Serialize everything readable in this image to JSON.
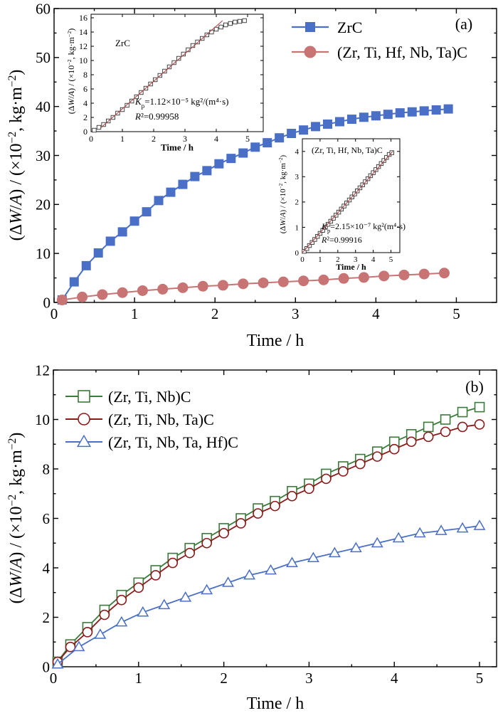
{
  "chart_data": [
    {
      "type": "line",
      "panel_label": "(a)",
      "xlabel": "Time / h",
      "ylabel": "(ΔW/A) / (×10⁻², kg·m⁻²)",
      "xlim": [
        0,
        5.5
      ],
      "ylim": [
        0,
        60
      ],
      "xticks": [
        "0",
        "1",
        "2",
        "3",
        "4",
        "5"
      ],
      "yticks": [
        "0",
        "10",
        "20",
        "30",
        "40",
        "50",
        "60"
      ],
      "legend_position": "top-right",
      "grid": false,
      "series": [
        {
          "name": "ZrC",
          "color": "#4a6fc7",
          "marker": "square-filled",
          "x": [
            0.1,
            0.25,
            0.4,
            0.55,
            0.7,
            0.85,
            1.0,
            1.15,
            1.3,
            1.45,
            1.6,
            1.75,
            1.9,
            2.05,
            2.2,
            2.35,
            2.5,
            2.65,
            2.8,
            2.95,
            3.1,
            3.25,
            3.4,
            3.55,
            3.7,
            3.85,
            4.0,
            4.15,
            4.3,
            4.45,
            4.6,
            4.75,
            4.9
          ],
          "y": [
            0.5,
            4.2,
            7.5,
            10.1,
            12.5,
            14.4,
            16.6,
            18.5,
            20.8,
            22.5,
            24.1,
            25.7,
            26.9,
            28.3,
            29.4,
            30.5,
            31.7,
            32.6,
            33.6,
            34.5,
            35.2,
            35.9,
            36.4,
            36.9,
            37.4,
            37.8,
            38.1,
            38.4,
            38.7,
            38.9,
            39.1,
            39.3,
            39.5
          ]
        },
        {
          "name": "(Zr, Ti, Hf, Nb, Ta)C",
          "color": "#c87474",
          "marker": "circle-filled",
          "x": [
            0.1,
            0.35,
            0.6,
            0.85,
            1.1,
            1.35,
            1.6,
            1.85,
            2.1,
            2.35,
            2.6,
            2.85,
            3.1,
            3.35,
            3.6,
            3.85,
            4.1,
            4.35,
            4.6,
            4.85
          ],
          "y": [
            0.5,
            1.1,
            1.6,
            2.0,
            2.4,
            2.7,
            3.0,
            3.3,
            3.5,
            3.8,
            4.0,
            4.2,
            4.4,
            4.6,
            4.9,
            5.1,
            5.4,
            5.6,
            5.8,
            6.0
          ]
        }
      ],
      "insets": [
        {
          "title": "ZrC",
          "xlabel": "Time / h",
          "ylabel": "(ΔW/A) / (×10⁻², kg·m⁻²)",
          "xlim": [
            0,
            5.5
          ],
          "ylim": [
            0,
            16.5
          ],
          "xticks": [
            "0",
            "1",
            "2",
            "3",
            "4",
            "5"
          ],
          "yticks": [
            "0",
            "2",
            "4",
            "6",
            "8",
            "10",
            "12",
            "14",
            "16"
          ],
          "kp_text": "K_p=1.12×10⁻⁵ kg²/(m⁴·s)",
          "r2_text": "R²=0.99958",
          "data": {
            "x": [
              0.1,
              0.25,
              0.4,
              0.55,
              0.7,
              0.85,
              1.0,
              1.15,
              1.3,
              1.45,
              1.6,
              1.75,
              1.9,
              2.05,
              2.2,
              2.35,
              2.5,
              2.65,
              2.8,
              2.95,
              3.1,
              3.25,
              3.4,
              3.55,
              3.7,
              3.85,
              4.0,
              4.15,
              4.3,
              4.45,
              4.6,
              4.75,
              4.9
            ],
            "y": [
              0.2,
              0.6,
              1.0,
              1.5,
              2.0,
              2.6,
              3.1,
              3.7,
              4.3,
              4.9,
              5.5,
              6.1,
              6.7,
              7.3,
              7.9,
              8.5,
              9.1,
              9.7,
              10.3,
              10.9,
              11.5,
              12.1,
              12.6,
              13.1,
              13.6,
              14.0,
              14.4,
              14.7,
              15.0,
              15.2,
              15.4,
              15.5,
              15.6
            ]
          },
          "fit": {
            "x": [
              0.3,
              4.2
            ],
            "y": [
              0.5,
              15.6
            ]
          }
        },
        {
          "title": "(Zr, Ti, Hf, Nb, Ta)C",
          "xlabel": "Time / h",
          "ylabel": "(ΔW/A) / (×10⁻², kg·m⁻²)",
          "xlim": [
            0,
            5.5
          ],
          "ylim": [
            0,
            4.5
          ],
          "xticks": [
            "0",
            "1",
            "2",
            "3",
            "4",
            "5"
          ],
          "yticks": [
            "0",
            "1",
            "2",
            "3",
            "4"
          ],
          "kp_text": "K_p=2.15×10⁻⁷ kg²(m⁴·s)",
          "r2_text": "R²=0.99916",
          "data": {
            "x": [
              0.1,
              0.25,
              0.4,
              0.55,
              0.7,
              0.85,
              1.0,
              1.15,
              1.3,
              1.45,
              1.6,
              1.75,
              1.9,
              2.05,
              2.2,
              2.35,
              2.5,
              2.65,
              2.8,
              2.95,
              3.1,
              3.25,
              3.4,
              3.55,
              3.7,
              3.85,
              4.0,
              4.15,
              4.3,
              4.45,
              4.6,
              4.75,
              4.9,
              5.05
            ],
            "y": [
              0.05,
              0.16,
              0.28,
              0.4,
              0.52,
              0.64,
              0.76,
              0.88,
              1.0,
              1.12,
              1.24,
              1.36,
              1.48,
              1.6,
              1.72,
              1.84,
              1.96,
              2.08,
              2.2,
              2.32,
              2.44,
              2.56,
              2.68,
              2.8,
              2.92,
              3.04,
              3.16,
              3.28,
              3.4,
              3.52,
              3.64,
              3.76,
              3.88,
              3.95
            ]
          },
          "fit": {
            "x": [
              0.0,
              5.1
            ],
            "y": [
              0.0,
              4.0
            ]
          }
        }
      ]
    },
    {
      "type": "line",
      "panel_label": "(b)",
      "xlabel": "Time / h",
      "ylabel": "(ΔW/A) / (×10⁻², kg·m⁻²)",
      "xlim": [
        0,
        5.2
      ],
      "ylim": [
        0,
        12
      ],
      "xticks": [
        "0",
        "1",
        "2",
        "3",
        "4",
        "5"
      ],
      "yticks": [
        "0",
        "2",
        "4",
        "6",
        "8",
        "10",
        "12"
      ],
      "legend_position": "top-left",
      "grid": false,
      "series": [
        {
          "name": "(Zr, Ti, Nb)C",
          "color": "#3a7a3a",
          "marker": "square-open",
          "x": [
            0.05,
            0.2,
            0.4,
            0.6,
            0.8,
            1.0,
            1.2,
            1.4,
            1.6,
            1.8,
            2.0,
            2.2,
            2.4,
            2.6,
            2.8,
            3.0,
            3.2,
            3.4,
            3.6,
            3.8,
            4.0,
            4.2,
            4.4,
            4.6,
            4.8,
            5.0
          ],
          "y": [
            0.2,
            0.9,
            1.6,
            2.3,
            2.9,
            3.4,
            3.9,
            4.4,
            4.8,
            5.2,
            5.6,
            6.0,
            6.4,
            6.7,
            7.1,
            7.4,
            7.8,
            8.1,
            8.4,
            8.7,
            9.1,
            9.4,
            9.7,
            10.0,
            10.3,
            10.5
          ]
        },
        {
          "name": "(Zr, Ti, Nb, Ta)C",
          "color": "#8b1a1a",
          "marker": "circle-open",
          "x": [
            0.05,
            0.2,
            0.4,
            0.6,
            0.8,
            1.0,
            1.2,
            1.4,
            1.6,
            1.8,
            2.0,
            2.2,
            2.4,
            2.6,
            2.8,
            3.0,
            3.2,
            3.4,
            3.6,
            3.8,
            4.0,
            4.2,
            4.4,
            4.6,
            4.8,
            5.0
          ],
          "y": [
            0.2,
            0.8,
            1.4,
            2.1,
            2.7,
            3.2,
            3.7,
            4.2,
            4.6,
            5.0,
            5.4,
            5.8,
            6.2,
            6.5,
            6.9,
            7.2,
            7.6,
            7.9,
            8.2,
            8.5,
            8.8,
            9.1,
            9.3,
            9.5,
            9.7,
            9.8
          ]
        },
        {
          "name": "(Zr, Ti, Nb, Ta, Hf)C",
          "color": "#4a6fc7",
          "marker": "triangle-open",
          "x": [
            0.05,
            0.3,
            0.55,
            0.8,
            1.05,
            1.3,
            1.55,
            1.8,
            2.05,
            2.3,
            2.55,
            2.8,
            3.05,
            3.3,
            3.55,
            3.8,
            4.05,
            4.3,
            4.55,
            4.8,
            5.0
          ],
          "y": [
            0.1,
            0.8,
            1.3,
            1.8,
            2.2,
            2.5,
            2.8,
            3.1,
            3.4,
            3.7,
            3.9,
            4.2,
            4.4,
            4.6,
            4.8,
            5.0,
            5.2,
            5.4,
            5.5,
            5.6,
            5.7
          ]
        }
      ]
    }
  ]
}
